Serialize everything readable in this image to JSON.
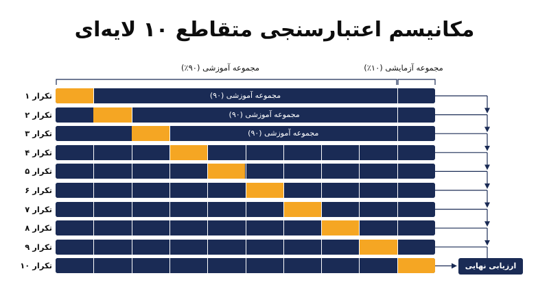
{
  "title": "مکانیسم اعتبارسنجی متقاطع ۱۰ لایه‌ای",
  "brackets": {
    "training_label": "مجموعه آموزشی (۹۰٪)",
    "test_label": "مجموعه آزمایشی (۱۰٪)"
  },
  "colors": {
    "train": "#1a2b55",
    "test": "#f5a623",
    "divider": "#ffffff",
    "arrow": "#1a2b55"
  },
  "rows": [
    {
      "label": "تکرار ۱",
      "test_fold": 0,
      "merged_text": "مجموعه آموزشی (۹۰)"
    },
    {
      "label": "تکرار ۲",
      "test_fold": 1,
      "merged_text": "مجموعه آموزشی (۹۰)"
    },
    {
      "label": "تکرار ۳",
      "test_fold": 2,
      "merged_text": "مجموعه آموزشی (۹۰)"
    },
    {
      "label": "تکرار ۴",
      "test_fold": 3
    },
    {
      "label": "تکرار ۵",
      "test_fold": 4
    },
    {
      "label": "تکرار ۶",
      "test_fold": 5
    },
    {
      "label": "تکرار ۷",
      "test_fold": 6
    },
    {
      "label": "تکرار ۸",
      "test_fold": 7
    },
    {
      "label": "تکرار ۹",
      "test_fold": 8
    },
    {
      "label": "تکرار ۱۰",
      "test_fold": 9
    }
  ],
  "final_evaluation": "ارزیابی نهایی"
}
